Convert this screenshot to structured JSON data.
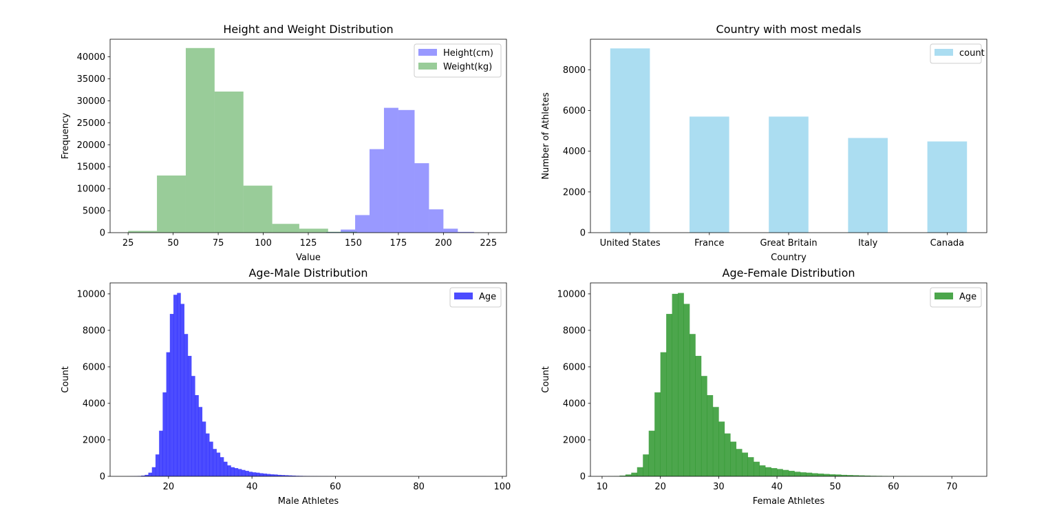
{
  "chart_data": [
    {
      "type": "histogram",
      "title": "Height and Weight Distribution",
      "xlabel": "Value",
      "ylabel": "Frequency",
      "xlim": [
        15,
        235
      ],
      "ylim": [
        0,
        44000
      ],
      "xticks": [
        25,
        50,
        75,
        100,
        125,
        150,
        175,
        200,
        225
      ],
      "yticks": [
        0,
        5000,
        10000,
        15000,
        20000,
        25000,
        30000,
        35000,
        40000
      ],
      "grid": false,
      "legend_position": "top-right",
      "series": [
        {
          "name": "Height(cm)",
          "color": "#0000ff",
          "alpha": 0.4,
          "bins": [
            [
              127,
              135,
              50
            ],
            [
              135,
              143,
              150
            ],
            [
              143,
              151,
              700
            ],
            [
              151,
              159,
              4000
            ],
            [
              159,
              167,
              19000
            ],
            [
              167,
              175,
              28400
            ],
            [
              175,
              184,
              27900
            ],
            [
              184,
              192,
              15800
            ],
            [
              192,
              200,
              5300
            ],
            [
              200,
              208,
              900
            ],
            [
              208,
              217,
              180
            ],
            [
              217,
              226,
              20
            ]
          ]
        },
        {
          "name": "Weight(kg)",
          "color": "#008000",
          "alpha": 0.4,
          "bins": [
            [
              25,
              41,
              400
            ],
            [
              41,
              57,
              13000
            ],
            [
              57,
              73,
              42000
            ],
            [
              73,
              89,
              32100
            ],
            [
              89,
              105,
              10700
            ],
            [
              105,
              120,
              2000
            ],
            [
              120,
              136,
              900
            ],
            [
              136,
              152,
              200
            ],
            [
              152,
              168,
              50
            ],
            [
              168,
              184,
              10
            ],
            [
              184,
              200,
              5
            ],
            [
              200,
              214,
              2
            ]
          ]
        }
      ]
    },
    {
      "type": "bar",
      "title": "Country with most medals",
      "xlabel": "Country",
      "ylabel": "Number of Athletes",
      "ylim": [
        0,
        9500
      ],
      "yticks": [
        0,
        2000,
        4000,
        6000,
        8000
      ],
      "grid": false,
      "legend_position": "top-right",
      "categories": [
        "United States",
        "France",
        "Great Britain",
        "Italy",
        "Canada"
      ],
      "series": [
        {
          "name": "count",
          "color": "#87ceeb",
          "alpha": 0.7,
          "values": [
            9050,
            5700,
            5700,
            4650,
            4480
          ]
        }
      ]
    },
    {
      "type": "histogram",
      "title": "Age-Male Distribution",
      "xlabel": "Male Athletes",
      "ylabel": "Count",
      "xlim": [
        6,
        101
      ],
      "ylim": [
        0,
        10600
      ],
      "xticks": [
        20,
        40,
        60,
        80,
        100
      ],
      "yticks": [
        0,
        2000,
        4000,
        6000,
        8000,
        10000
      ],
      "grid": false,
      "legend_position": "top-right",
      "series": [
        {
          "name": "Age",
          "color": "#0000ff",
          "alpha": 0.7,
          "bin_start": 10,
          "bin_width": 0.86,
          "counts": [
            2,
            5,
            10,
            20,
            40,
            80,
            200,
            500,
            1200,
            2500,
            4600,
            6800,
            8900,
            9950,
            10050,
            9450,
            7800,
            6600,
            5500,
            4450,
            3800,
            3000,
            2350,
            1900,
            1500,
            1300,
            1050,
            800,
            600,
            500,
            450,
            400,
            350,
            300,
            250,
            220,
            200,
            170,
            150,
            130,
            110,
            100,
            80,
            70,
            60,
            50,
            40,
            30,
            25,
            20,
            15,
            12,
            10,
            8,
            6,
            5,
            4,
            3,
            2,
            2,
            1,
            1,
            1,
            1,
            1,
            1,
            1,
            1,
            1,
            1,
            1,
            1,
            1,
            1,
            1,
            1,
            1,
            1,
            1,
            1,
            1,
            1,
            1,
            1,
            1,
            1,
            1,
            1,
            1,
            1,
            1,
            1,
            1,
            1,
            1,
            1,
            1,
            1,
            1,
            1
          ]
        }
      ]
    },
    {
      "type": "histogram",
      "title": "Age-Female Distribution",
      "xlabel": "Female Athletes",
      "ylabel": "Count",
      "xlim": [
        8,
        76
      ],
      "ylim": [
        0,
        10600
      ],
      "xticks": [
        10,
        20,
        30,
        40,
        50,
        60,
        70
      ],
      "yticks": [
        0,
        2000,
        4000,
        6000,
        8000,
        10000
      ],
      "grid": false,
      "legend_position": "top-right",
      "series": [
        {
          "name": "Age",
          "color": "#008000",
          "alpha": 0.7,
          "bin_start": 11,
          "bin_width": 1,
          "counts": [
            5,
            10,
            40,
            100,
            200,
            500,
            1200,
            2500,
            4600,
            6800,
            8900,
            10000,
            10050,
            9450,
            7800,
            6600,
            5500,
            4450,
            3800,
            3000,
            2350,
            1900,
            1500,
            1300,
            1050,
            800,
            600,
            500,
            450,
            400,
            350,
            300,
            250,
            220,
            200,
            170,
            150,
            130,
            110,
            100,
            80,
            70,
            60,
            50,
            40,
            30,
            25,
            20,
            15,
            12,
            10,
            8,
            6,
            5,
            4,
            3,
            2,
            2,
            1,
            1,
            1,
            1,
            1
          ]
        }
      ]
    }
  ]
}
